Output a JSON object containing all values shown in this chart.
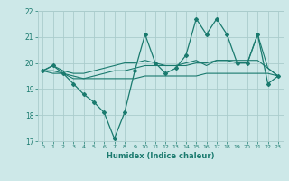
{
  "xlabel": "Humidex (Indice chaleur)",
  "ylabel": "",
  "background_color": "#cde8e8",
  "grid_color": "#aacccc",
  "line_color": "#1a7a6e",
  "xlim": [
    -0.5,
    23.5
  ],
  "ylim": [
    17,
    22
  ],
  "xticks": [
    0,
    1,
    2,
    3,
    4,
    5,
    6,
    7,
    8,
    9,
    10,
    11,
    12,
    13,
    14,
    15,
    16,
    17,
    18,
    19,
    20,
    21,
    22,
    23
  ],
  "yticks": [
    17,
    18,
    19,
    20,
    21,
    22
  ],
  "x": [
    0,
    1,
    2,
    3,
    4,
    5,
    6,
    7,
    8,
    9,
    10,
    11,
    12,
    13,
    14,
    15,
    16,
    17,
    18,
    19,
    20,
    21,
    22,
    23
  ],
  "line_main": [
    19.7,
    19.9,
    19.6,
    19.2,
    18.8,
    18.5,
    18.1,
    17.1,
    18.1,
    19.7,
    21.1,
    20.0,
    19.6,
    19.8,
    20.3,
    21.7,
    21.1,
    21.7,
    21.1,
    20.0,
    20.0,
    21.1,
    19.2,
    19.5
  ],
  "line_upper": [
    19.7,
    19.9,
    19.7,
    19.6,
    19.6,
    19.7,
    19.8,
    19.9,
    20.0,
    20.0,
    20.1,
    20.0,
    19.9,
    19.9,
    20.0,
    20.1,
    19.9,
    20.1,
    20.1,
    20.0,
    20.0,
    21.1,
    19.8,
    19.5
  ],
  "line_lower": [
    19.7,
    19.6,
    19.6,
    19.4,
    19.4,
    19.4,
    19.4,
    19.4,
    19.4,
    19.4,
    19.5,
    19.5,
    19.5,
    19.5,
    19.5,
    19.5,
    19.6,
    19.6,
    19.6,
    19.6,
    19.6,
    19.6,
    19.6,
    19.5
  ],
  "line_trend": [
    19.7,
    19.7,
    19.6,
    19.5,
    19.4,
    19.5,
    19.6,
    19.7,
    19.7,
    19.8,
    19.9,
    19.9,
    19.9,
    19.9,
    19.9,
    20.0,
    20.0,
    20.1,
    20.1,
    20.1,
    20.1,
    20.1,
    19.8,
    19.5
  ]
}
